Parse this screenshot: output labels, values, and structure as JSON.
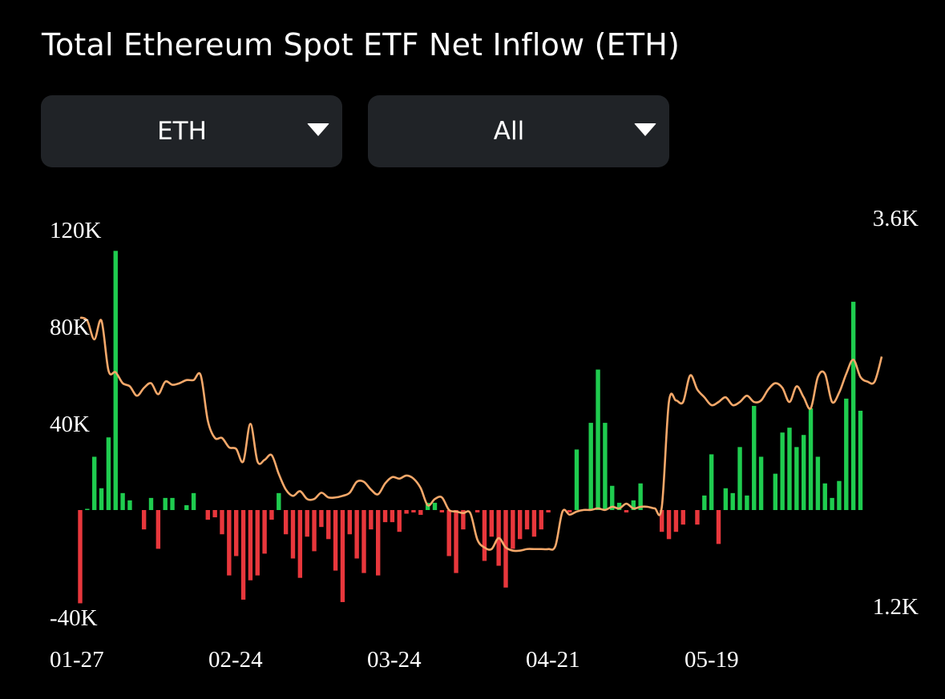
{
  "header": {
    "title": "Total Ethereum Spot ETF Net Inflow (ETH)"
  },
  "filters": {
    "asset": {
      "selected": "ETH",
      "icon": "caret-down-icon"
    },
    "range": {
      "selected": "All",
      "icon": "caret-down-icon"
    }
  },
  "colors": {
    "inflow": "#1fcc4f",
    "outflow": "#e8373c",
    "line": "#f5a86a",
    "background": "#000000",
    "dropdown_bg": "#202327"
  },
  "chart_data": {
    "type": "bar",
    "title": "Total Ethereum Spot ETF Net Inflow (ETH)",
    "grid": false,
    "x_tick_labels": [
      "01-27",
      "02-24",
      "03-24",
      "04-21",
      "05-19"
    ],
    "x_tick_indices": [
      0,
      20,
      40,
      60,
      80
    ],
    "left_axis": {
      "tick_labels": [
        "120K",
        "80K",
        "40K",
        "-40K"
      ],
      "ticks": [
        120000,
        80000,
        40000,
        -40000
      ],
      "range": [
        -40000,
        120000
      ]
    },
    "right_axis": {
      "tick_labels": [
        "3.6K",
        "1.2K"
      ],
      "ticks": [
        3600,
        1200
      ],
      "range": [
        1200,
        3600
      ]
    },
    "series": [
      {
        "kind": "bar",
        "axis": "left",
        "values": [
          -38500,
          500,
          22000,
          9000,
          30000,
          107000,
          7000,
          4000,
          0,
          -8000,
          5000,
          -16000,
          5000,
          5000,
          0,
          2000,
          7000,
          0,
          -4000,
          -3000,
          -10000,
          -27000,
          -19000,
          -37000,
          -29000,
          -27000,
          -18000,
          -4000,
          7000,
          -10000,
          -20000,
          -28000,
          -11000,
          -17000,
          -7000,
          -12000,
          -25000,
          -38000,
          -10000,
          -20000,
          -26000,
          -8000,
          -27000,
          -5000,
          -5000,
          -9000,
          -1500,
          -1000,
          -2000,
          3000,
          3000,
          -1000,
          -19000,
          -26000,
          -8000,
          0,
          -1000,
          -21000,
          -11000,
          -23000,
          -32000,
          -16000,
          -12000,
          -8000,
          -11000,
          -8000,
          -1000,
          0,
          0,
          -1000,
          25000,
          0,
          36000,
          58000,
          36000,
          10000,
          3000,
          -1000,
          4000,
          11000,
          0,
          0,
          -9000,
          -12000,
          -9000,
          -6000,
          0,
          -6000,
          6000,
          23000,
          -14000,
          9000,
          7000,
          26000,
          6000,
          43000,
          22000,
          0,
          15000,
          32000,
          34000,
          26000,
          31000,
          42000,
          22000,
          11000,
          5000,
          12000,
          46000,
          86000,
          41000
        ]
      },
      {
        "kind": "line",
        "axis": "right",
        "name": "",
        "values": [
          3060,
          3040,
          2920,
          3040,
          2720,
          2710,
          2640,
          2620,
          2560,
          2610,
          2640,
          2570,
          2650,
          2630,
          2640,
          2660,
          2660,
          2690,
          2400,
          2290,
          2290,
          2230,
          2220,
          2140,
          2380,
          2140,
          2150,
          2180,
          2060,
          1960,
          1920,
          1950,
          1900,
          1900,
          1940,
          1910,
          1910,
          1920,
          1940,
          2010,
          2010,
          1960,
          1930,
          2000,
          2040,
          2030,
          2050,
          2030,
          1970,
          1860,
          1900,
          1910,
          1830,
          1820,
          1810,
          1810,
          1640,
          1590,
          1580,
          1650,
          1590,
          1570,
          1570,
          1580,
          1580,
          1580,
          1580,
          1600,
          1820,
          1800,
          1820,
          1830,
          1830,
          1840,
          1830,
          1850,
          1840,
          1870,
          1840,
          1850,
          1850,
          1840,
          1850,
          2520,
          2530,
          2520,
          2690,
          2600,
          2550,
          2500,
          2520,
          2550,
          2500,
          2520,
          2560,
          2520,
          2530,
          2600,
          2640,
          2610,
          2520,
          2620,
          2550,
          2480,
          2680,
          2700,
          2520,
          2580,
          2700,
          2790,
          2680,
          2650,
          2650,
          2810
        ]
      }
    ]
  }
}
